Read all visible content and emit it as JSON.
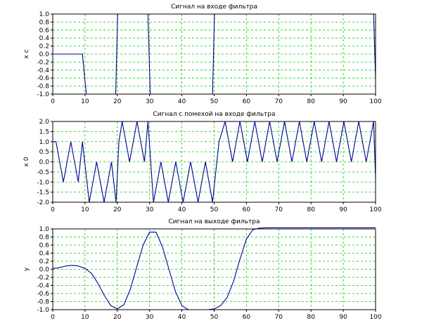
{
  "chart_data": [
    {
      "type": "line",
      "title": "Сигнал на входе фильтра",
      "ylabel": "x c",
      "xlabel": "",
      "xlim": [
        0,
        100
      ],
      "ylim": [
        -1,
        1
      ],
      "xticks": [
        0,
        10,
        20,
        30,
        40,
        50,
        60,
        70,
        80,
        90,
        100
      ],
      "yticks": [
        -1.0,
        -0.8,
        -0.6,
        -0.4,
        -0.2,
        0.0,
        0.2,
        0.4,
        0.6,
        0.8,
        1.0
      ],
      "grid": true,
      "series": [
        {
          "color": "#000096",
          "x": [
            0,
            9.2,
            10.4,
            19.5,
            20.1,
            29.5,
            30.2,
            49.5,
            50.1,
            99.4,
            100
          ],
          "y": [
            0,
            0,
            -1,
            -1,
            1,
            1,
            -1,
            -1,
            1,
            1,
            -0.6
          ]
        }
      ]
    },
    {
      "type": "line",
      "title": "Сигнал с помехой на входе фильтра",
      "ylabel": "x 0",
      "xlabel": "",
      "xlim": [
        0,
        100
      ],
      "ylim": [
        -2,
        2
      ],
      "xticks": [
        0,
        10,
        20,
        30,
        40,
        50,
        60,
        70,
        80,
        90,
        100
      ],
      "yticks": [
        -2.0,
        -1.5,
        -1.0,
        -0.5,
        0.0,
        0.5,
        1.0,
        1.5,
        2.0
      ],
      "grid": true,
      "series": [
        {
          "color": "#000096",
          "x": [
            0,
            1,
            3.3,
            5.6,
            7.9,
            9.2,
            11.3,
            13.6,
            15.9,
            18.2,
            19.6,
            20.5,
            21.5,
            23.8,
            26.1,
            28.4,
            29.5,
            31.2,
            33.5,
            35.8,
            38.1,
            40.4,
            42.7,
            45,
            47.3,
            49.5,
            51.5,
            53.4,
            55.7,
            58,
            60.3,
            62.6,
            64.9,
            67.2,
            69.5,
            71.8,
            74.1,
            76.4,
            78.7,
            81,
            83.3,
            85.6,
            87.9,
            90.2,
            92.5,
            94.8,
            97.1,
            99.4,
            100
          ],
          "y": [
            1,
            1,
            -1,
            1,
            -1,
            1,
            -2,
            0,
            -2,
            0,
            -2,
            1,
            2,
            0,
            2,
            0,
            2,
            -2,
            0,
            -2,
            0,
            -2,
            0,
            -2,
            0,
            -2,
            1,
            2,
            0,
            2,
            0,
            2,
            0,
            2,
            0,
            2,
            0,
            2,
            0,
            2,
            0,
            2,
            0,
            2,
            0,
            2,
            0,
            2,
            -0.8
          ]
        }
      ]
    },
    {
      "type": "line",
      "title": "Сигнал на выходе фильтра",
      "ylabel": "y",
      "xlabel": "",
      "xlim": [
        0,
        100
      ],
      "ylim": [
        -1,
        1
      ],
      "xticks": [
        0,
        10,
        20,
        30,
        40,
        50,
        60,
        70,
        80,
        90,
        100
      ],
      "yticks": [
        -1.0,
        -0.8,
        -0.6,
        -0.4,
        -0.2,
        0.0,
        0.2,
        0.4,
        0.6,
        0.8,
        1.0
      ],
      "grid": true,
      "series": [
        {
          "color": "#000096",
          "x": [
            0,
            2,
            4,
            6,
            8,
            10,
            12,
            14,
            16,
            18,
            20,
            22,
            24,
            26,
            28,
            30,
            32,
            34,
            36,
            38,
            40,
            42,
            44,
            46,
            48,
            50,
            52,
            54,
            56,
            58,
            60,
            62,
            64,
            66,
            68,
            70,
            75,
            80,
            85,
            90,
            95,
            100
          ],
          "y": [
            0.02,
            0.04,
            0.08,
            0.1,
            0.08,
            0.02,
            -0.1,
            -0.35,
            -0.65,
            -0.9,
            -0.98,
            -0.88,
            -0.5,
            0.05,
            0.6,
            0.92,
            0.92,
            0.55,
            0.0,
            -0.55,
            -0.9,
            -1.0,
            -1.0,
            -1.0,
            -1.0,
            -0.98,
            -0.9,
            -0.7,
            -0.3,
            0.25,
            0.75,
            0.98,
            1.02,
            1.03,
            1.03,
            1.03,
            1.03,
            1.03,
            1.03,
            1.03,
            1.03,
            1.03
          ]
        }
      ]
    }
  ]
}
